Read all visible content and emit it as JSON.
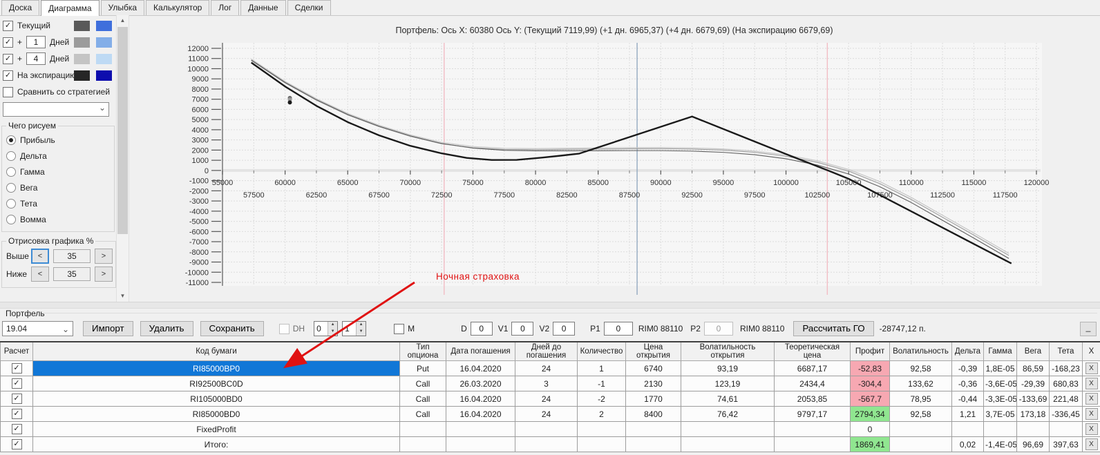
{
  "tabs": {
    "items": [
      {
        "id": "doska",
        "label": "Доска",
        "active": false
      },
      {
        "id": "diagramma",
        "label": "Диаграмма",
        "active": true
      },
      {
        "id": "ulybka",
        "label": "Улыбка",
        "active": false
      },
      {
        "id": "kalkulyator",
        "label": "Калькулятор",
        "active": false
      },
      {
        "id": "log",
        "label": "Лог",
        "active": false
      },
      {
        "id": "dannye",
        "label": "Данные",
        "active": false
      },
      {
        "id": "sdelki",
        "label": "Сделки",
        "active": false
      }
    ]
  },
  "panel": {
    "curve_rows": [
      {
        "id": "current",
        "checked": true,
        "label": "Текущий",
        "prefix": "",
        "value": "",
        "suffix": "",
        "swatches": [
          "#595959",
          "#3f6fdc"
        ]
      },
      {
        "id": "plus-1-day",
        "checked": true,
        "label": "",
        "prefix": "+",
        "value": "1",
        "suffix": "Дней",
        "swatches": [
          "#9b9b9b",
          "#83aee8"
        ]
      },
      {
        "id": "plus-4-days",
        "checked": true,
        "label": "",
        "prefix": "+",
        "value": "4",
        "suffix": "Дней",
        "swatches": [
          "#c4c4c4",
          "#bedaf4"
        ]
      },
      {
        "id": "expiration",
        "checked": true,
        "label": "На экспирацию",
        "prefix": "",
        "value": "",
        "suffix": "",
        "swatches": [
          "#262626",
          "#0d0dae"
        ]
      }
    ],
    "compare": {
      "checked": false,
      "label": "Сравнить со стратегией"
    },
    "strategy_combo_value": "",
    "draw_group": {
      "title": "Чего рисуем",
      "options": [
        {
          "label": "Прибыль",
          "selected": true
        },
        {
          "label": "Дельта",
          "selected": false
        },
        {
          "label": "Гамма",
          "selected": false
        },
        {
          "label": "Вега",
          "selected": false
        },
        {
          "label": "Тета",
          "selected": false
        },
        {
          "label": "Вомма",
          "selected": false
        }
      ]
    },
    "render_group": {
      "title": "Отрисовка графика %",
      "rows": [
        {
          "id": "above",
          "label": "Выше",
          "dec": "<",
          "value": "35",
          "inc": ">",
          "focused": true
        },
        {
          "id": "below",
          "label": "Ниже",
          "dec": "<",
          "value": "35",
          "inc": ">",
          "focused": false
        }
      ]
    }
  },
  "chart_data": {
    "type": "line",
    "title": "Портфель: Ось X: 60380 Ось Y:  (Текущий 7119,99)  (+1 дн. 6965,37)  (+4 дн. 6679,69)  (На экспирацию 6679,69)",
    "xlabel": "",
    "ylabel": "",
    "xlim": [
      55000,
      120000
    ],
    "ylim": [
      -11000,
      12000
    ],
    "grid": true,
    "legend_position": "none",
    "x_major_ticks": [
      55000,
      60000,
      65000,
      70000,
      75000,
      80000,
      85000,
      90000,
      95000,
      100000,
      105000,
      110000,
      115000,
      120000
    ],
    "x_minor_ticks": [
      57500,
      62500,
      67500,
      72500,
      77500,
      82500,
      87500,
      92500,
      97500,
      102500,
      107500,
      112500,
      117500
    ],
    "y_ticks": [
      12000,
      11000,
      10000,
      9000,
      8000,
      7000,
      6000,
      5000,
      4000,
      3000,
      2000,
      1000,
      0,
      -1000,
      -2000,
      -3000,
      -4000,
      -5000,
      -6000,
      -7000,
      -8000,
      -9000,
      -10000,
      -11000
    ],
    "series": [
      {
        "name": "+4 дня",
        "color": "#c6c6c6",
        "width": 1.2,
        "points": [
          [
            57300,
            10950
          ],
          [
            60000,
            8750
          ],
          [
            62500,
            7050
          ],
          [
            65000,
            5600
          ],
          [
            67500,
            4450
          ],
          [
            70000,
            3500
          ],
          [
            72500,
            2760
          ],
          [
            75000,
            2350
          ],
          [
            77500,
            2170
          ],
          [
            80000,
            2150
          ],
          [
            82500,
            2180
          ],
          [
            85000,
            2210
          ],
          [
            87500,
            2240
          ],
          [
            90000,
            2250
          ],
          [
            92500,
            2210
          ],
          [
            95000,
            2110
          ],
          [
            97500,
            1900
          ],
          [
            100000,
            1530
          ],
          [
            102500,
            950
          ],
          [
            105000,
            100
          ],
          [
            107500,
            -1100
          ],
          [
            110000,
            -2650
          ],
          [
            112500,
            -4400
          ],
          [
            115000,
            -6150
          ],
          [
            117800,
            -8150
          ]
        ]
      },
      {
        "name": "+1 день",
        "color": "#9a9a9a",
        "width": 1.1,
        "points": [
          [
            57300,
            10800
          ],
          [
            60000,
            8600
          ],
          [
            62500,
            6900
          ],
          [
            65000,
            5450
          ],
          [
            67500,
            4300
          ],
          [
            70000,
            3350
          ],
          [
            72500,
            2620
          ],
          [
            75000,
            2230
          ],
          [
            77500,
            2060
          ],
          [
            80000,
            2040
          ],
          [
            82500,
            2070
          ],
          [
            85000,
            2100
          ],
          [
            87500,
            2130
          ],
          [
            90000,
            2140
          ],
          [
            92500,
            2100
          ],
          [
            95000,
            2000
          ],
          [
            97500,
            1780
          ],
          [
            100000,
            1400
          ],
          [
            102500,
            800
          ],
          [
            105000,
            -60
          ],
          [
            107500,
            -1300
          ],
          [
            110000,
            -2850
          ],
          [
            112500,
            -4600
          ],
          [
            115000,
            -6350
          ],
          [
            117800,
            -8350
          ]
        ]
      },
      {
        "name": "Текущий",
        "color": "#5d5d5d",
        "width": 1.1,
        "points": [
          [
            57300,
            10850
          ],
          [
            60000,
            8650
          ],
          [
            62500,
            6950
          ],
          [
            65000,
            5500
          ],
          [
            67500,
            4350
          ],
          [
            70000,
            3400
          ],
          [
            72500,
            2650
          ],
          [
            75000,
            2200
          ],
          [
            77500,
            1980
          ],
          [
            80000,
            1930
          ],
          [
            82500,
            1930
          ],
          [
            85000,
            1940
          ],
          [
            87500,
            1950
          ],
          [
            90000,
            1950
          ],
          [
            92500,
            1900
          ],
          [
            95000,
            1780
          ],
          [
            97500,
            1550
          ],
          [
            100000,
            1150
          ],
          [
            102500,
            530
          ],
          [
            105000,
            -350
          ],
          [
            107500,
            -1600
          ],
          [
            110000,
            -3150
          ],
          [
            112500,
            -4900
          ],
          [
            115000,
            -6650
          ],
          [
            117800,
            -8650
          ]
        ]
      },
      {
        "name": "На экспирацию",
        "color": "#1a1a1a",
        "width": 2.4,
        "points": [
          [
            57300,
            10600
          ],
          [
            60000,
            8250
          ],
          [
            62500,
            6350
          ],
          [
            65000,
            4750
          ],
          [
            67500,
            3450
          ],
          [
            70000,
            2420
          ],
          [
            72500,
            1680
          ],
          [
            74500,
            1230
          ],
          [
            76500,
            1030
          ],
          [
            78500,
            1040
          ],
          [
            80500,
            1260
          ],
          [
            82000,
            1450
          ],
          [
            83500,
            1660
          ],
          [
            92500,
            5300
          ],
          [
            95000,
            4070
          ],
          [
            97500,
            2840
          ],
          [
            100000,
            1610
          ],
          [
            103350,
            0
          ],
          [
            105000,
            -820
          ],
          [
            107500,
            -2420
          ],
          [
            110000,
            -4020
          ],
          [
            112500,
            -5620
          ],
          [
            115000,
            -7220
          ],
          [
            118000,
            -9140
          ]
        ]
      }
    ],
    "markers": [
      {
        "x": 60380,
        "y": 7120,
        "color": "#6a6a6a"
      },
      {
        "x": 60380,
        "y": 6965,
        "color": "#9a9a9a"
      },
      {
        "x": 60380,
        "y": 6680,
        "color": "#1a1a1a"
      }
    ],
    "vlines": [
      {
        "x": 72700,
        "color": "#f2bcc4"
      },
      {
        "x": 103300,
        "color": "#f2bcc4"
      },
      {
        "x": 88110,
        "color": "#93a9c0"
      }
    ],
    "annotation": {
      "text": "Ночная страховка",
      "color": "#e01212"
    }
  },
  "toolbar": {
    "group_label": "Портфель",
    "portfolio_select": "19.04",
    "import_label": "Импорт",
    "delete_label": "Удалить",
    "save_label": "Сохранить",
    "dh_label": "DH",
    "spin1_value": "0",
    "spin2_value": "1",
    "m_label": "M",
    "d_label": "D",
    "d_value": "0",
    "v1_label": "V1",
    "v1_value": "0",
    "v2_label": "V2",
    "v2_value": "0",
    "p1_label": "P1",
    "p1_value": "0",
    "rim1": "RIM0 88110",
    "p2_label": "P2",
    "p2_value": "0",
    "rim2": "RIM0 88110",
    "calc_go_label": "Рассчитать ГО",
    "go_value": "-28747,12 п.",
    "corner_button": "_"
  },
  "table": {
    "headers": [
      "Расчет",
      "Код бумаги",
      "Тип опциона",
      "Дата погашения",
      "Дней до погашения",
      "Количество",
      "Цена открытия",
      "Волатильность открытия",
      "Теоретическая цена",
      "Профит",
      "Волатильность",
      "Дельта",
      "Гамма",
      "Вега",
      "Тета",
      "X"
    ],
    "delete_label": "X",
    "colors": {
      "gain": "#90e690",
      "loss": "#f7a8b2",
      "selected_row": "#1177d7"
    },
    "rows": [
      {
        "checked": true,
        "selected": true,
        "code": "RI85000BP0",
        "type": "Put",
        "expiry": "16.04.2020",
        "days": "24",
        "qty": "1",
        "open_price": "6740",
        "open_vol": "93,19",
        "theor_price": "6687,17",
        "profit": "-52,83",
        "profit_color": "loss",
        "vol": "92,58",
        "delta": "-0,39",
        "gamma": "1,8E-05",
        "vega": "86,59",
        "theta": "-168,23"
      },
      {
        "checked": true,
        "selected": false,
        "code": "RI92500BC0D",
        "type": "Call",
        "expiry": "26.03.2020",
        "days": "3",
        "qty": "-1",
        "open_price": "2130",
        "open_vol": "123,19",
        "theor_price": "2434,4",
        "profit": "-304,4",
        "profit_color": "loss",
        "vol": "133,62",
        "delta": "-0,36",
        "gamma": "-3,6E-05",
        "vega": "-29,39",
        "theta": "680,83"
      },
      {
        "checked": true,
        "selected": false,
        "code": "RI105000BD0",
        "type": "Call",
        "expiry": "16.04.2020",
        "days": "24",
        "qty": "-2",
        "open_price": "1770",
        "open_vol": "74,61",
        "theor_price": "2053,85",
        "profit": "-567,7",
        "profit_color": "loss",
        "vol": "78,95",
        "delta": "-0,44",
        "gamma": "-3,3E-05",
        "vega": "-133,69",
        "theta": "221,48"
      },
      {
        "checked": true,
        "selected": false,
        "code": "RI85000BD0",
        "type": "Call",
        "expiry": "16.04.2020",
        "days": "24",
        "qty": "2",
        "open_price": "8400",
        "open_vol": "76,42",
        "theor_price": "9797,17",
        "profit": "2794,34",
        "profit_color": "gain",
        "vol": "92,58",
        "delta": "1,21",
        "gamma": "3,7E-05",
        "vega": "173,18",
        "theta": "-336,45"
      },
      {
        "checked": true,
        "selected": false,
        "code": "FixedProfit",
        "type": "",
        "expiry": "",
        "days": "",
        "qty": "",
        "open_price": "",
        "open_vol": "",
        "theor_price": "",
        "profit": "0",
        "profit_color": "none",
        "vol": "",
        "delta": "",
        "gamma": "",
        "vega": "",
        "theta": ""
      },
      {
        "checked": true,
        "selected": false,
        "code": "Итого:",
        "type": "",
        "expiry": "",
        "days": "",
        "qty": "",
        "open_price": "",
        "open_vol": "",
        "theor_price": "",
        "profit": "1869,41",
        "profit_color": "gain",
        "vol": "",
        "delta": "0,02",
        "gamma": "-1,4E-05",
        "vega": "96,69",
        "theta": "397,63"
      }
    ]
  }
}
